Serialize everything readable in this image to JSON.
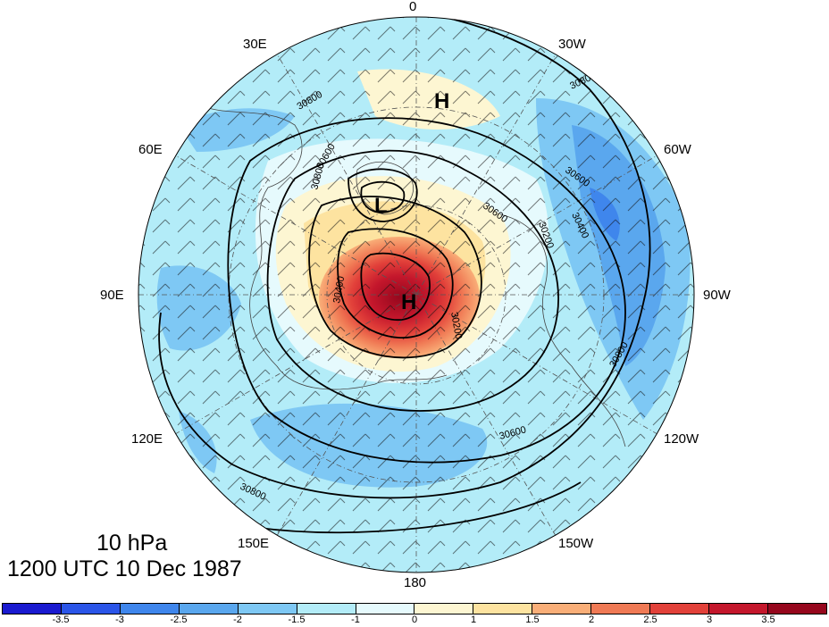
{
  "map": {
    "projection": "polar stereographic, north pole centered",
    "lon_labels": [
      "0",
      "30W",
      "60W",
      "90W",
      "120W",
      "150W",
      "180",
      "150E",
      "120E",
      "90E",
      "60E",
      "30E"
    ],
    "pressure_centers": [
      {
        "label": "H",
        "type": "high",
        "name": "high-north"
      },
      {
        "label": "L",
        "type": "low",
        "name": "low-west"
      },
      {
        "label": "H",
        "type": "high",
        "name": "high-main"
      }
    ],
    "contour_labels": [
      "30800",
      "30600",
      "30400",
      "30200",
      "30800",
      "30800",
      "30600",
      "30800",
      "30600",
      "30400",
      "30200",
      "30600",
      "30800"
    ]
  },
  "caption": {
    "level": "10 hPa",
    "time": "1200 UTC 10 Dec 1987"
  },
  "colorbar": {
    "colors": [
      "#1a1ad0",
      "#2b55e8",
      "#3f86ec",
      "#5aa7ee",
      "#7ec8f4",
      "#b3ecf8",
      "#e6fafd",
      "#fdf6d2",
      "#fde3a0",
      "#f9ae78",
      "#f07a55",
      "#e2413a",
      "#c4172c",
      "#96071d"
    ],
    "labels": [
      "-3.5",
      "-3",
      "-2.5",
      "-2",
      "-1.5",
      "-1",
      "0",
      "1",
      "1.5",
      "2",
      "2.5",
      "3",
      "3.5"
    ]
  }
}
